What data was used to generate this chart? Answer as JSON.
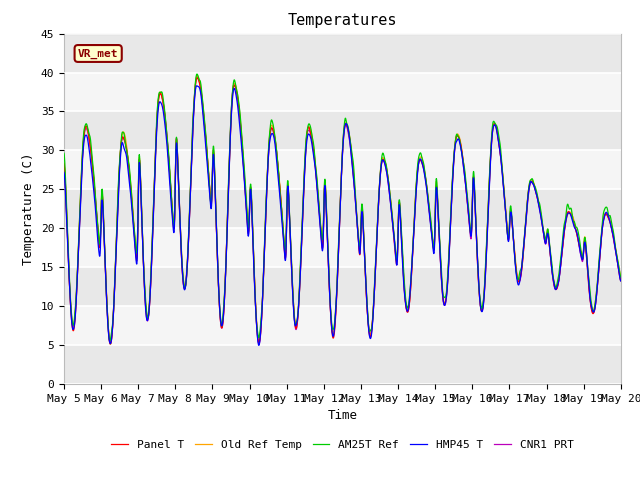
{
  "title": "Temperatures",
  "xlabel": "Time",
  "ylabel": "Temperature (C)",
  "ylim": [
    0,
    45
  ],
  "annotation": "VR_met",
  "legend_entries": [
    "Panel T",
    "Old Ref Temp",
    "AM25T Ref",
    "HMP45 T",
    "CNR1 PRT"
  ],
  "line_colors": [
    "#ff0000",
    "#ffa500",
    "#00cc00",
    "#0000ff",
    "#bb00bb"
  ],
  "xtick_labels": [
    "May 5",
    "May 6",
    "May 7",
    "May 8",
    "May 9",
    "May 10",
    "May 11",
    "May 12",
    "May 13",
    "May 14",
    "May 15",
    "May 16",
    "May 17",
    "May 18",
    "May 19",
    "May 20"
  ],
  "band_colors": [
    "#e8e8e8",
    "#f5f5f5"
  ],
  "fig_background": "#ffffff",
  "title_fontsize": 11,
  "axis_label_fontsize": 9,
  "tick_fontsize": 8,
  "day_peaks": [
    33,
    32,
    37.5,
    39.5,
    38.5,
    33,
    33,
    33.5,
    29,
    29,
    32,
    33.5,
    26,
    22,
    22
  ],
  "day_mins": [
    7,
    5,
    8,
    12,
    7,
    5,
    7,
    6,
    6,
    9,
    10,
    9,
    13,
    12,
    9
  ]
}
